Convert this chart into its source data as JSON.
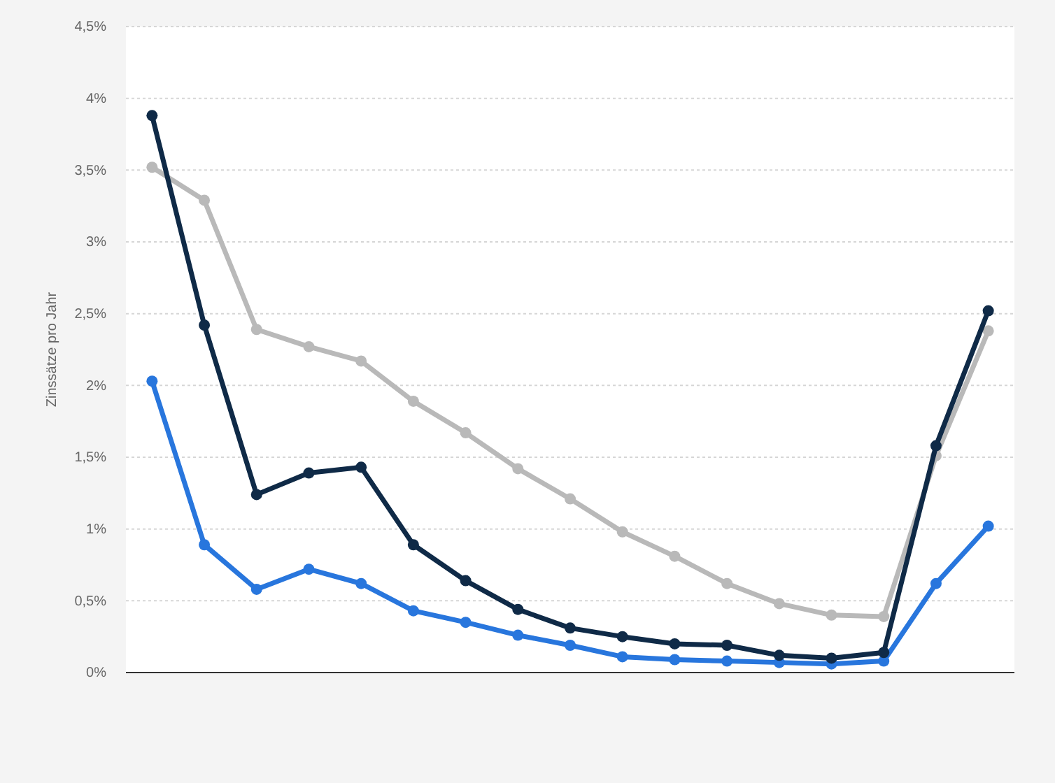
{
  "chart_data": {
    "type": "line",
    "ylabel": "Zinssätze pro Jahr",
    "categories": [
      null,
      null,
      null,
      null,
      null,
      null,
      null,
      null,
      null,
      null,
      null,
      null,
      null,
      null,
      null,
      null,
      null
    ],
    "ylim": [
      0,
      4.5
    ],
    "yticks": [
      {
        "value": 0,
        "label": "0%"
      },
      {
        "value": 0.5,
        "label": "0,5%"
      },
      {
        "value": 1,
        "label": "1%"
      },
      {
        "value": 1.5,
        "label": "1,5%"
      },
      {
        "value": 2,
        "label": "2%"
      },
      {
        "value": 2.5,
        "label": "2,5%"
      },
      {
        "value": 3,
        "label": "3%"
      },
      {
        "value": 3.5,
        "label": "3,5%"
      },
      {
        "value": 4,
        "label": "4%"
      },
      {
        "value": 4.5,
        "label": "4,5%"
      }
    ],
    "grid": "y",
    "marker": "circle",
    "line_style": "solid",
    "series": [
      {
        "color": "#b9b9b9",
        "values": [
          3.52,
          3.29,
          2.39,
          2.27,
          2.17,
          1.89,
          1.67,
          1.42,
          1.21,
          0.98,
          0.81,
          0.62,
          0.48,
          0.4,
          0.39,
          1.51,
          2.38
        ]
      },
      {
        "color": "#2876dd",
        "values": [
          2.03,
          0.89,
          0.58,
          0.72,
          0.62,
          0.43,
          0.35,
          0.26,
          0.19,
          0.11,
          0.09,
          0.08,
          0.07,
          0.06,
          0.08,
          0.62,
          1.02
        ]
      },
      {
        "color": "#0f2a47",
        "values": [
          3.88,
          2.42,
          1.24,
          1.39,
          1.43,
          0.89,
          0.64,
          0.44,
          0.31,
          0.25,
          0.2,
          0.19,
          0.12,
          0.1,
          0.14,
          1.58,
          2.52
        ]
      }
    ]
  }
}
